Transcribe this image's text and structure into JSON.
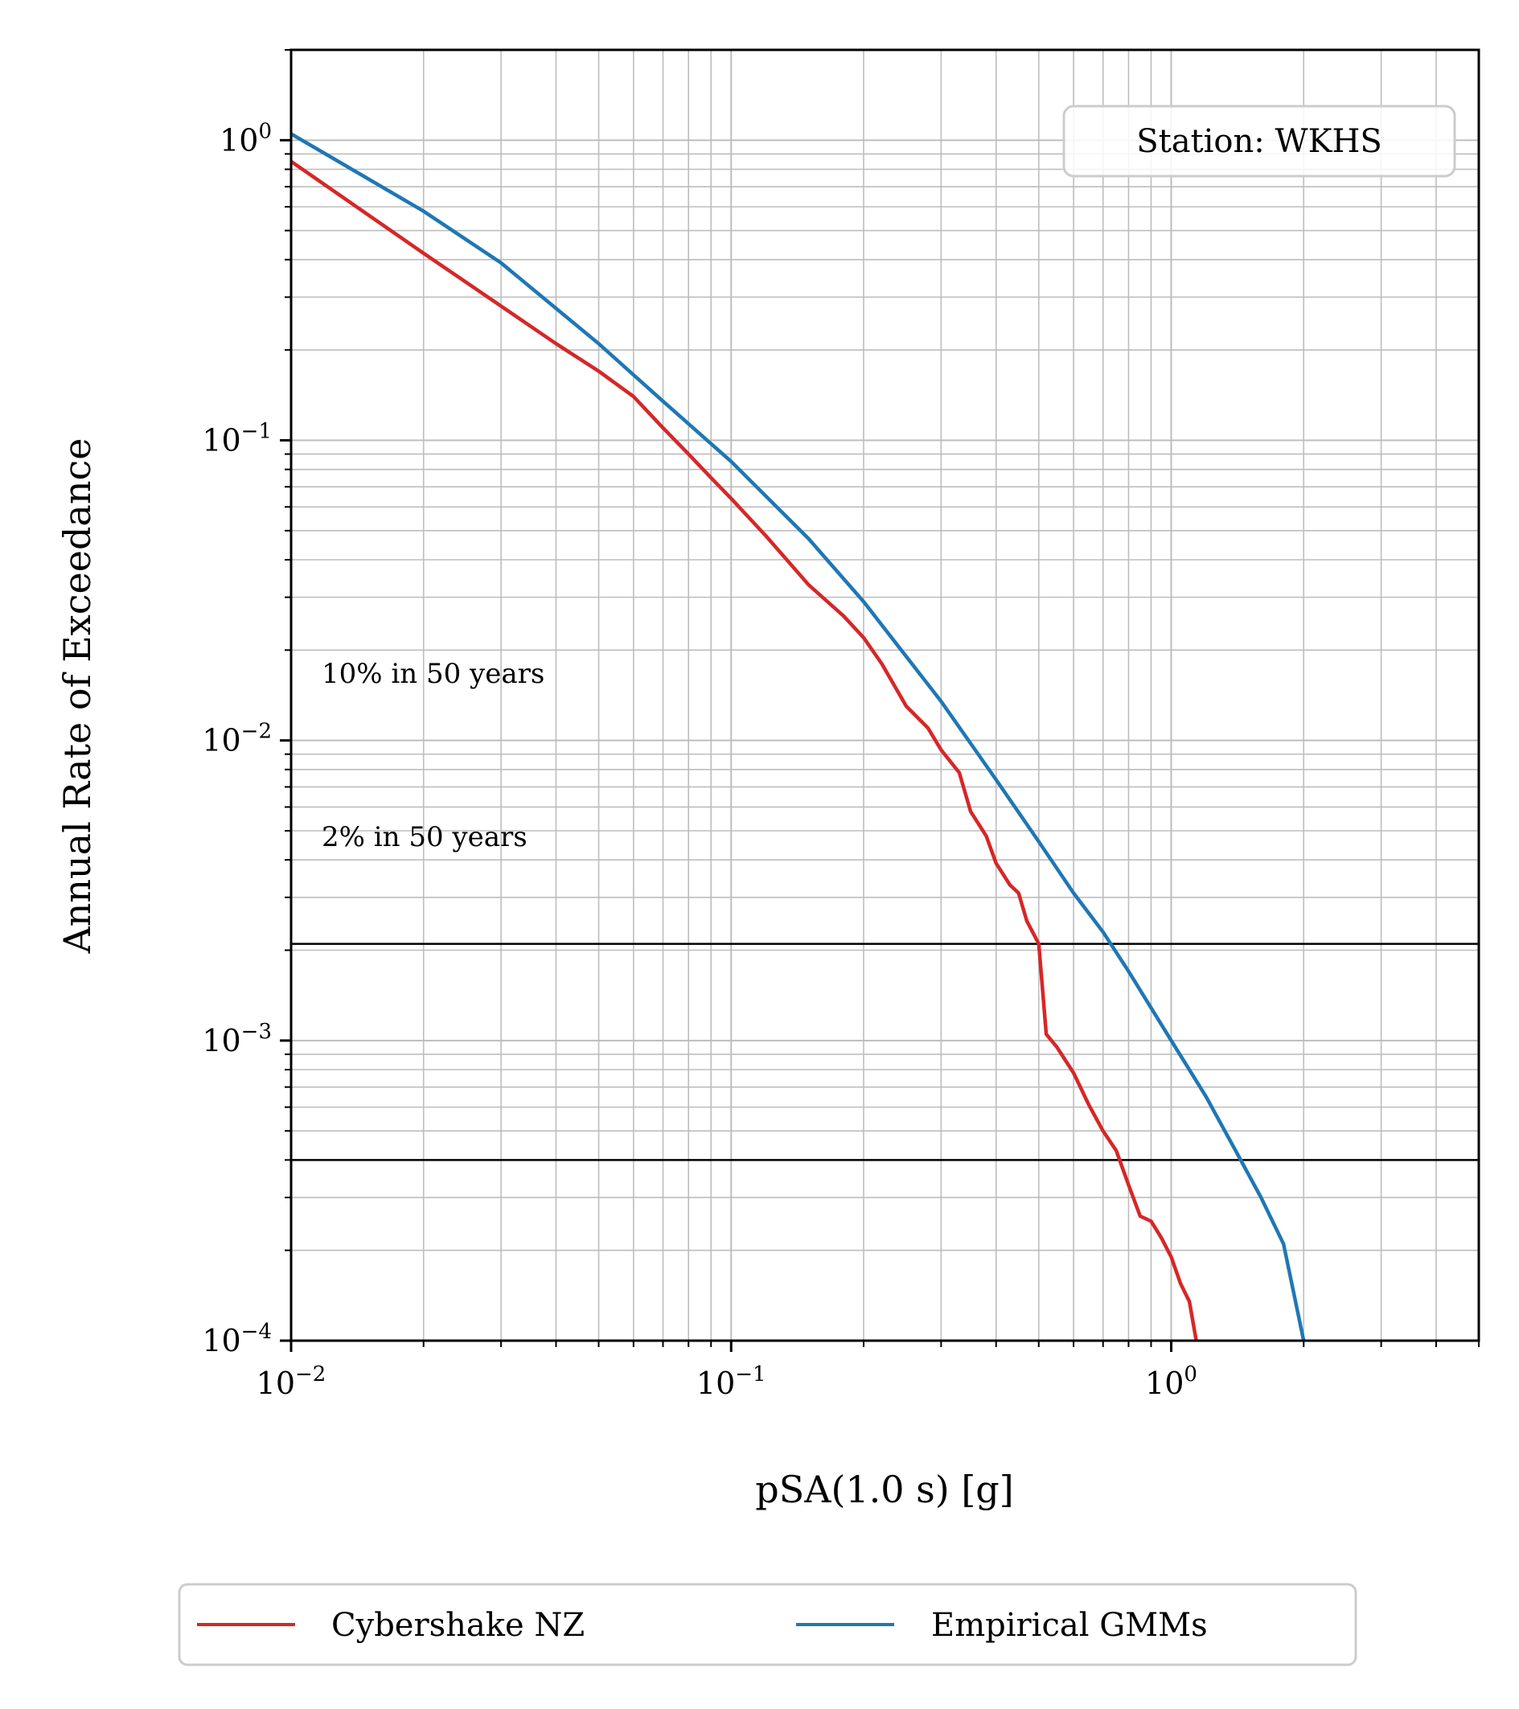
{
  "chart_data": {
    "type": "line",
    "xlabel": "pSA(1.0 s) [g]",
    "ylabel": "Annual Rate of Exceedance",
    "xscale": "log",
    "yscale": "log",
    "xlim": [
      0.01,
      5.0
    ],
    "ylim": [
      0.0001,
      2.0
    ],
    "grid": true,
    "x_ticks": [
      {
        "base": "10",
        "exp": "−2",
        "value": 0.01
      },
      {
        "base": "10",
        "exp": "−1",
        "value": 0.1
      },
      {
        "base": "10",
        "exp": "0",
        "value": 1.0
      }
    ],
    "y_ticks": [
      {
        "base": "10",
        "exp": "0",
        "value": 1.0
      },
      {
        "base": "10",
        "exp": "−1",
        "value": 0.1
      },
      {
        "base": "10",
        "exp": "−2",
        "value": 0.01
      },
      {
        "base": "10",
        "exp": "−3",
        "value": 0.001
      },
      {
        "base": "10",
        "exp": "−4",
        "value": 0.0001
      }
    ],
    "reference_lines": [
      {
        "label": "10% in 50 years",
        "y": 0.0021
      },
      {
        "label": "2% in 50 years",
        "y": 0.0004
      }
    ],
    "annotation_box": "Station: WKHS",
    "legend": {
      "placement": "bottom-center"
    },
    "series": [
      {
        "name": "Cybershake NZ",
        "color": "#d62728",
        "x": [
          0.01,
          0.02,
          0.03,
          0.04,
          0.05,
          0.06,
          0.07,
          0.08,
          0.09,
          0.1,
          0.12,
          0.15,
          0.18,
          0.2,
          0.22,
          0.25,
          0.28,
          0.3,
          0.33,
          0.35,
          0.38,
          0.4,
          0.43,
          0.45,
          0.47,
          0.5,
          0.52,
          0.55,
          0.6,
          0.65,
          0.7,
          0.75,
          0.8,
          0.85,
          0.9,
          0.95,
          1.0,
          1.05,
          1.1,
          1.14
        ],
        "y": [
          0.85,
          0.42,
          0.28,
          0.21,
          0.17,
          0.14,
          0.11,
          0.09,
          0.075,
          0.064,
          0.048,
          0.033,
          0.026,
          0.022,
          0.018,
          0.013,
          0.011,
          0.0093,
          0.0078,
          0.0058,
          0.0048,
          0.0039,
          0.0033,
          0.0031,
          0.0025,
          0.0021,
          0.00105,
          0.00095,
          0.00078,
          0.00061,
          0.0005,
          0.00043,
          0.00033,
          0.00026,
          0.00025,
          0.00022,
          0.00019,
          0.000155,
          0.000135,
          0.0001
        ]
      },
      {
        "name": "Empirical GMMs",
        "color": "#1f77b4",
        "x": [
          0.01,
          0.02,
          0.03,
          0.05,
          0.07,
          0.1,
          0.15,
          0.2,
          0.3,
          0.4,
          0.5,
          0.6,
          0.7,
          0.8,
          1.0,
          1.2,
          1.4,
          1.6,
          1.8,
          2.0
        ],
        "y": [
          1.05,
          0.58,
          0.39,
          0.21,
          0.135,
          0.085,
          0.047,
          0.029,
          0.0135,
          0.0074,
          0.0046,
          0.0031,
          0.0023,
          0.0017,
          0.001,
          0.00065,
          0.00043,
          0.0003,
          0.00021,
          0.0001
        ]
      }
    ]
  }
}
